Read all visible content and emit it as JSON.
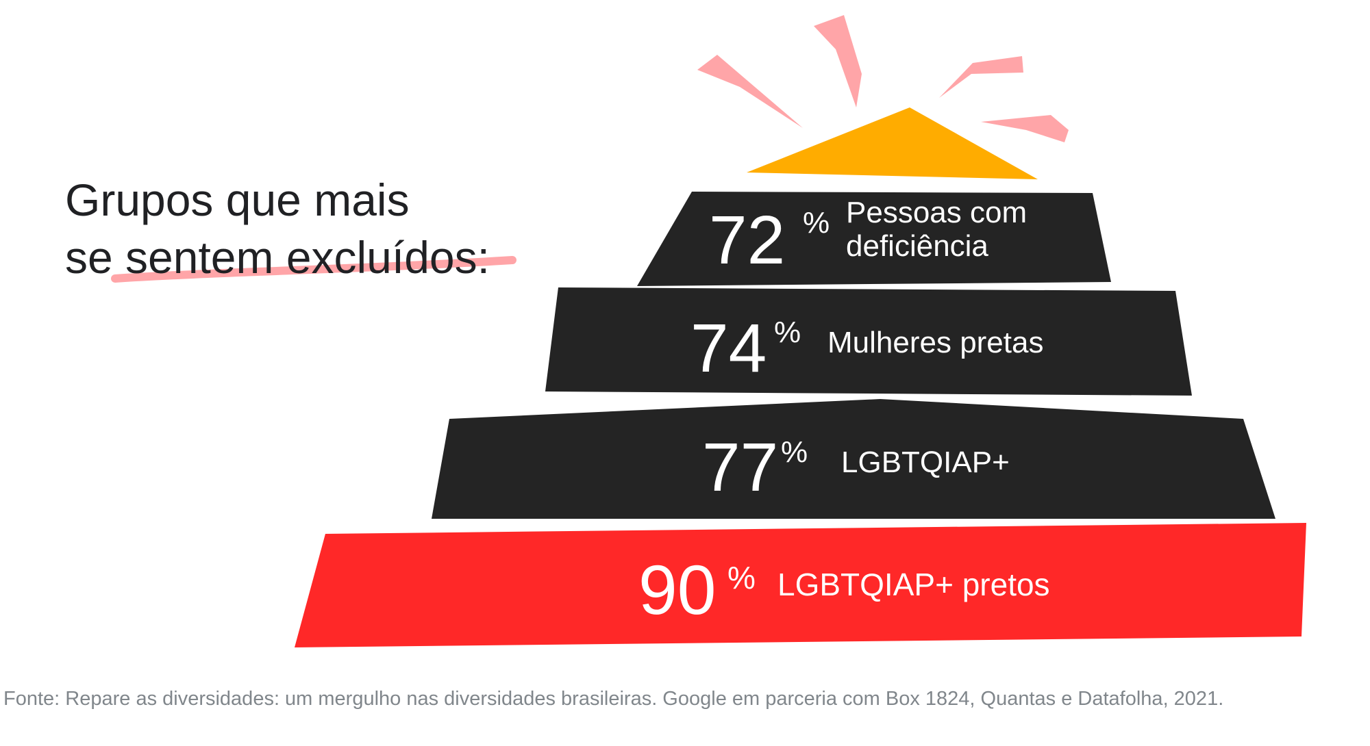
{
  "chart_data": {
    "type": "bar",
    "title_line1": "Grupos que mais",
    "title_line2": "se sentem excluídos:",
    "unit": "%",
    "categories": [
      "Pessoas com deficiência",
      "Mulheres pretas",
      "LGBTQIAP+",
      "LGBTQIAP+ pretos"
    ],
    "values": [
      72,
      74,
      77,
      90
    ],
    "label_lines": [
      [
        "Pessoas com",
        "deficiência"
      ],
      [
        "Mulheres pretas"
      ],
      [
        "LGBTQIAP+"
      ],
      [
        "LGBTQIAP+ pretos"
      ]
    ],
    "source": "Fonte: Repare as diversidades: um mergulho nas diversidades brasileiras. Google em parceria com Box 1824, Quantas e Datafolha, 2021."
  },
  "colors": {
    "bar_dark": "#242424",
    "bar_highlight": "#ff2828",
    "apex": "#ffac00",
    "spark": "#ffa5a8",
    "underline": "#ffa5a8",
    "text_dark": "#202124",
    "text_source": "#80868b"
  },
  "icons": {
    "apex": "triangle-apex-icon",
    "sparks": "burst-sparks-icon"
  }
}
